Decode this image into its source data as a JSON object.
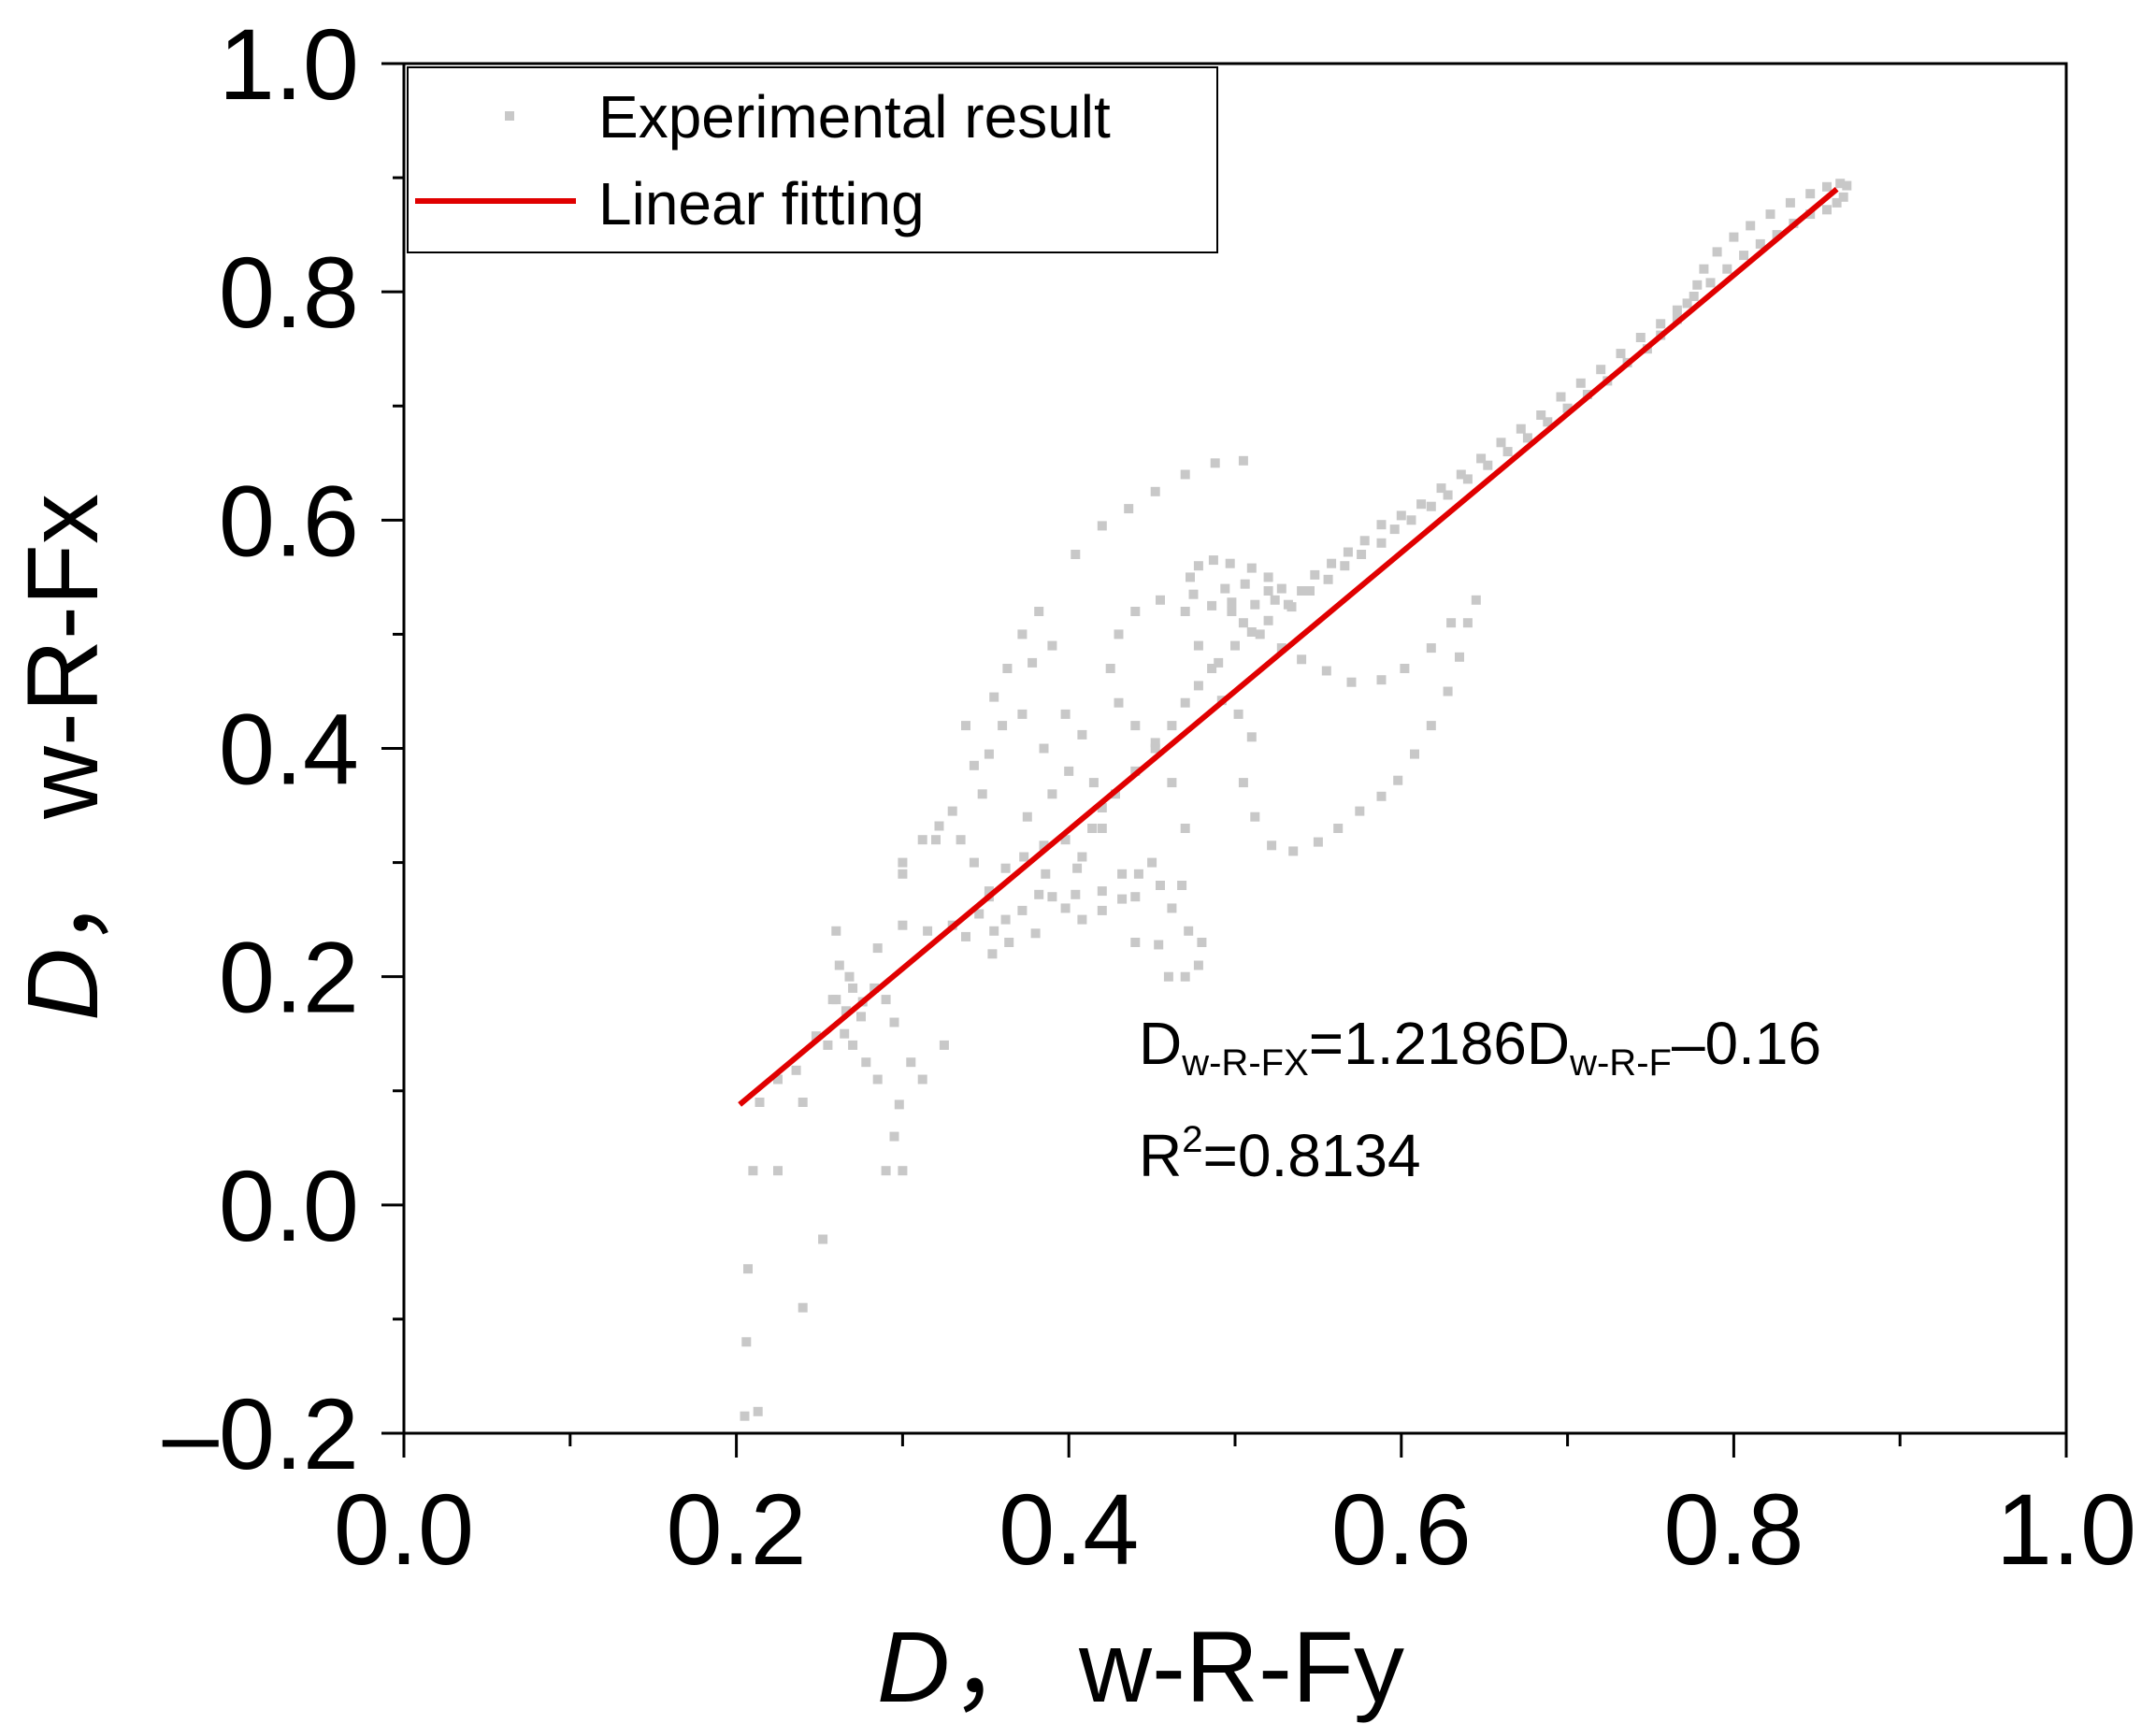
{
  "chart_data": {
    "type": "scatter",
    "title": "",
    "x_label": {
      "italic": "D",
      "rest": "， w-R-Fy"
    },
    "y_label": {
      "italic": "D",
      "rest": "， w-R-Fx"
    },
    "xlim": [
      0.0,
      1.0
    ],
    "ylim": [
      -0.2,
      1.0
    ],
    "x_ticks": [
      "0.0",
      "0.2",
      "0.4",
      "0.6",
      "0.8",
      "1.0"
    ],
    "y_ticks": [
      "–0.2",
      "0.0",
      "0.2",
      "0.4",
      "0.6",
      "0.8",
      "1.0"
    ],
    "grid": false,
    "legend_position": "top-left",
    "legend": {
      "scatter_label": "Experimental result",
      "line_label": "Linear fitting"
    },
    "colors": {
      "scatter": "#c8c8c8",
      "fit_line": "#e00000",
      "axis": "#000000"
    },
    "series": [
      {
        "name": "Experimental result",
        "kind": "scatter",
        "points": [
          [
            0.205,
            -0.185
          ],
          [
            0.213,
            -0.181
          ],
          [
            0.206,
            -0.12
          ],
          [
            0.207,
            -0.056
          ],
          [
            0.21,
            0.03
          ],
          [
            0.214,
            0.09
          ],
          [
            0.225,
            0.11
          ],
          [
            0.24,
            -0.09
          ],
          [
            0.252,
            -0.03
          ],
          [
            0.225,
            0.03
          ],
          [
            0.24,
            0.09
          ],
          [
            0.255,
            0.14
          ],
          [
            0.26,
            0.18
          ],
          [
            0.265,
            0.15
          ],
          [
            0.26,
            0.24
          ],
          [
            0.262,
            0.21
          ],
          [
            0.27,
            0.19
          ],
          [
            0.27,
            0.14
          ],
          [
            0.275,
            0.165
          ],
          [
            0.283,
            0.19
          ],
          [
            0.29,
            0.18
          ],
          [
            0.295,
            0.16
          ],
          [
            0.29,
            0.03
          ],
          [
            0.295,
            0.06
          ],
          [
            0.3,
            0.03
          ],
          [
            0.285,
            0.11
          ],
          [
            0.278,
            0.125
          ],
          [
            0.298,
            0.088
          ],
          [
            0.305,
            0.125
          ],
          [
            0.312,
            0.11
          ],
          [
            0.325,
            0.14
          ],
          [
            0.285,
            0.225
          ],
          [
            0.3,
            0.245
          ],
          [
            0.315,
            0.24
          ],
          [
            0.33,
            0.245
          ],
          [
            0.338,
            0.235
          ],
          [
            0.32,
            0.32
          ],
          [
            0.335,
            0.32
          ],
          [
            0.343,
            0.3
          ],
          [
            0.352,
            0.275
          ],
          [
            0.362,
            0.25
          ],
          [
            0.372,
            0.258
          ],
          [
            0.382,
            0.272
          ],
          [
            0.386,
            0.29
          ],
          [
            0.373,
            0.305
          ],
          [
            0.362,
            0.295
          ],
          [
            0.352,
            0.27
          ],
          [
            0.364,
            0.23
          ],
          [
            0.354,
            0.22
          ],
          [
            0.346,
            0.255
          ],
          [
            0.375,
            0.34
          ],
          [
            0.39,
            0.36
          ],
          [
            0.385,
            0.4
          ],
          [
            0.372,
            0.43
          ],
          [
            0.36,
            0.42
          ],
          [
            0.352,
            0.395
          ],
          [
            0.348,
            0.36
          ],
          [
            0.338,
            0.42
          ],
          [
            0.378,
            0.475
          ],
          [
            0.39,
            0.49
          ],
          [
            0.398,
            0.43
          ],
          [
            0.408,
            0.412
          ],
          [
            0.4,
            0.38
          ],
          [
            0.415,
            0.37
          ],
          [
            0.42,
            0.33
          ],
          [
            0.398,
            0.32
          ],
          [
            0.385,
            0.315
          ],
          [
            0.405,
            0.295
          ],
          [
            0.42,
            0.275
          ],
          [
            0.432,
            0.29
          ],
          [
            0.442,
            0.29
          ],
          [
            0.45,
            0.3
          ],
          [
            0.455,
            0.28
          ],
          [
            0.44,
            0.27
          ],
          [
            0.432,
            0.268
          ],
          [
            0.42,
            0.258
          ],
          [
            0.408,
            0.25
          ],
          [
            0.398,
            0.26
          ],
          [
            0.44,
            0.23
          ],
          [
            0.454,
            0.228
          ],
          [
            0.46,
            0.2
          ],
          [
            0.47,
            0.2
          ],
          [
            0.478,
            0.21
          ],
          [
            0.48,
            0.23
          ],
          [
            0.472,
            0.24
          ],
          [
            0.462,
            0.26
          ],
          [
            0.468,
            0.28
          ],
          [
            0.47,
            0.33
          ],
          [
            0.462,
            0.37
          ],
          [
            0.452,
            0.4
          ],
          [
            0.44,
            0.42
          ],
          [
            0.43,
            0.44
          ],
          [
            0.425,
            0.47
          ],
          [
            0.43,
            0.5
          ],
          [
            0.44,
            0.52
          ],
          [
            0.455,
            0.53
          ],
          [
            0.47,
            0.52
          ],
          [
            0.478,
            0.49
          ],
          [
            0.486,
            0.47
          ],
          [
            0.492,
            0.442
          ],
          [
            0.502,
            0.43
          ],
          [
            0.51,
            0.41
          ],
          [
            0.505,
            0.37
          ],
          [
            0.512,
            0.34
          ],
          [
            0.522,
            0.315
          ],
          [
            0.535,
            0.31
          ],
          [
            0.55,
            0.318
          ],
          [
            0.562,
            0.33
          ],
          [
            0.575,
            0.345
          ],
          [
            0.588,
            0.358
          ],
          [
            0.598,
            0.372
          ],
          [
            0.608,
            0.395
          ],
          [
            0.618,
            0.42
          ],
          [
            0.628,
            0.45
          ],
          [
            0.635,
            0.48
          ],
          [
            0.64,
            0.51
          ],
          [
            0.645,
            0.53
          ],
          [
            0.63,
            0.51
          ],
          [
            0.618,
            0.488
          ],
          [
            0.602,
            0.47
          ],
          [
            0.588,
            0.46
          ],
          [
            0.57,
            0.458
          ],
          [
            0.555,
            0.468
          ],
          [
            0.54,
            0.478
          ],
          [
            0.528,
            0.488
          ],
          [
            0.515,
            0.5
          ],
          [
            0.505,
            0.51
          ],
          [
            0.498,
            0.52
          ],
          [
            0.486,
            0.525
          ],
          [
            0.475,
            0.535
          ],
          [
            0.473,
            0.55
          ],
          [
            0.478,
            0.56
          ],
          [
            0.487,
            0.565
          ],
          [
            0.497,
            0.562
          ],
          [
            0.51,
            0.558
          ],
          [
            0.52,
            0.55
          ],
          [
            0.528,
            0.54
          ],
          [
            0.524,
            0.53
          ],
          [
            0.512,
            0.526
          ],
          [
            0.498,
            0.528
          ],
          [
            0.494,
            0.54
          ],
          [
            0.506,
            0.544
          ],
          [
            0.52,
            0.538
          ],
          [
            0.436,
            0.61
          ],
          [
            0.452,
            0.625
          ],
          [
            0.47,
            0.64
          ],
          [
            0.488,
            0.65
          ],
          [
            0.505,
            0.652
          ],
          [
            0.404,
            0.57
          ],
          [
            0.42,
            0.595
          ],
          [
            0.382,
            0.52
          ],
          [
            0.372,
            0.5
          ],
          [
            0.363,
            0.47
          ],
          [
            0.355,
            0.445
          ],
          [
            0.343,
            0.385
          ],
          [
            0.33,
            0.345
          ],
          [
            0.322,
            0.332
          ],
          [
            0.312,
            0.32
          ],
          [
            0.3,
            0.3
          ],
          [
            0.3,
            0.29
          ],
          [
            0.355,
            0.24
          ],
          [
            0.38,
            0.238
          ],
          [
            0.39,
            0.27
          ],
          [
            0.404,
            0.272
          ],
          [
            0.408,
            0.305
          ],
          [
            0.414,
            0.33
          ],
          [
            0.42,
            0.348
          ],
          [
            0.428,
            0.36
          ],
          [
            0.44,
            0.38
          ],
          [
            0.452,
            0.405
          ],
          [
            0.462,
            0.42
          ],
          [
            0.47,
            0.44
          ],
          [
            0.478,
            0.455
          ],
          [
            0.49,
            0.475
          ],
          [
            0.5,
            0.49
          ],
          [
            0.51,
            0.502
          ],
          [
            0.52,
            0.512
          ],
          [
            0.534,
            0.524
          ],
          [
            0.545,
            0.538
          ],
          [
            0.556,
            0.548
          ],
          [
            0.566,
            0.56
          ],
          [
            0.576,
            0.57
          ],
          [
            0.588,
            0.58
          ],
          [
            0.596,
            0.592
          ],
          [
            0.606,
            0.6
          ],
          [
            0.618,
            0.612
          ],
          [
            0.628,
            0.622
          ],
          [
            0.64,
            0.636
          ],
          [
            0.652,
            0.648
          ],
          [
            0.664,
            0.66
          ],
          [
            0.676,
            0.672
          ],
          [
            0.688,
            0.686
          ],
          [
            0.7,
            0.698
          ],
          [
            0.712,
            0.71
          ],
          [
            0.724,
            0.722
          ],
          [
            0.736,
            0.738
          ],
          [
            0.748,
            0.75
          ],
          [
            0.756,
            0.762
          ],
          [
            0.766,
            0.776
          ],
          [
            0.772,
            0.79
          ],
          [
            0.778,
            0.806
          ],
          [
            0.782,
            0.82
          ],
          [
            0.79,
            0.835
          ],
          [
            0.8,
            0.848
          ],
          [
            0.81,
            0.858
          ],
          [
            0.822,
            0.868
          ],
          [
            0.834,
            0.878
          ],
          [
            0.846,
            0.886
          ],
          [
            0.856,
            0.892
          ],
          [
            0.864,
            0.895
          ],
          [
            0.868,
            0.893
          ],
          [
            0.866,
            0.883
          ],
          [
            0.862,
            0.878
          ],
          [
            0.856,
            0.872
          ],
          [
            0.846,
            0.868
          ],
          [
            0.836,
            0.86
          ],
          [
            0.826,
            0.85
          ],
          [
            0.816,
            0.842
          ],
          [
            0.806,
            0.832
          ],
          [
            0.796,
            0.82
          ],
          [
            0.786,
            0.808
          ],
          [
            0.776,
            0.796
          ],
          [
            0.766,
            0.784
          ],
          [
            0.756,
            0.772
          ],
          [
            0.744,
            0.76
          ],
          [
            0.732,
            0.746
          ],
          [
            0.72,
            0.732
          ],
          [
            0.708,
            0.72
          ],
          [
            0.696,
            0.708
          ],
          [
            0.684,
            0.692
          ],
          [
            0.672,
            0.68
          ],
          [
            0.66,
            0.668
          ],
          [
            0.648,
            0.654
          ],
          [
            0.636,
            0.64
          ],
          [
            0.624,
            0.628
          ],
          [
            0.612,
            0.614
          ],
          [
            0.6,
            0.604
          ],
          [
            0.588,
            0.596
          ],
          [
            0.578,
            0.582
          ],
          [
            0.568,
            0.572
          ],
          [
            0.558,
            0.562
          ],
          [
            0.548,
            0.552
          ],
          [
            0.54,
            0.538
          ],
          [
            0.532,
            0.526
          ],
          [
            0.258,
            0.18
          ],
          [
            0.266,
            0.17
          ],
          [
            0.276,
            0.178
          ],
          [
            0.268,
            0.2
          ],
          [
            0.248,
            0.148
          ],
          [
            0.236,
            0.118
          ]
        ]
      },
      {
        "name": "Linear fitting",
        "kind": "line",
        "x": [
          0.202,
          0.862
        ],
        "y": [
          0.088,
          0.89
        ]
      }
    ],
    "annotation": {
      "eq_main": "D",
      "eq_sub1": "w-R-FX",
      "eq_mid": "=1.2186D",
      "eq_sub2": "w-R-F",
      "eq_end": "–0.16",
      "r2_main": "R",
      "r2_sup": "2",
      "r2_end": "=0.8134"
    }
  }
}
